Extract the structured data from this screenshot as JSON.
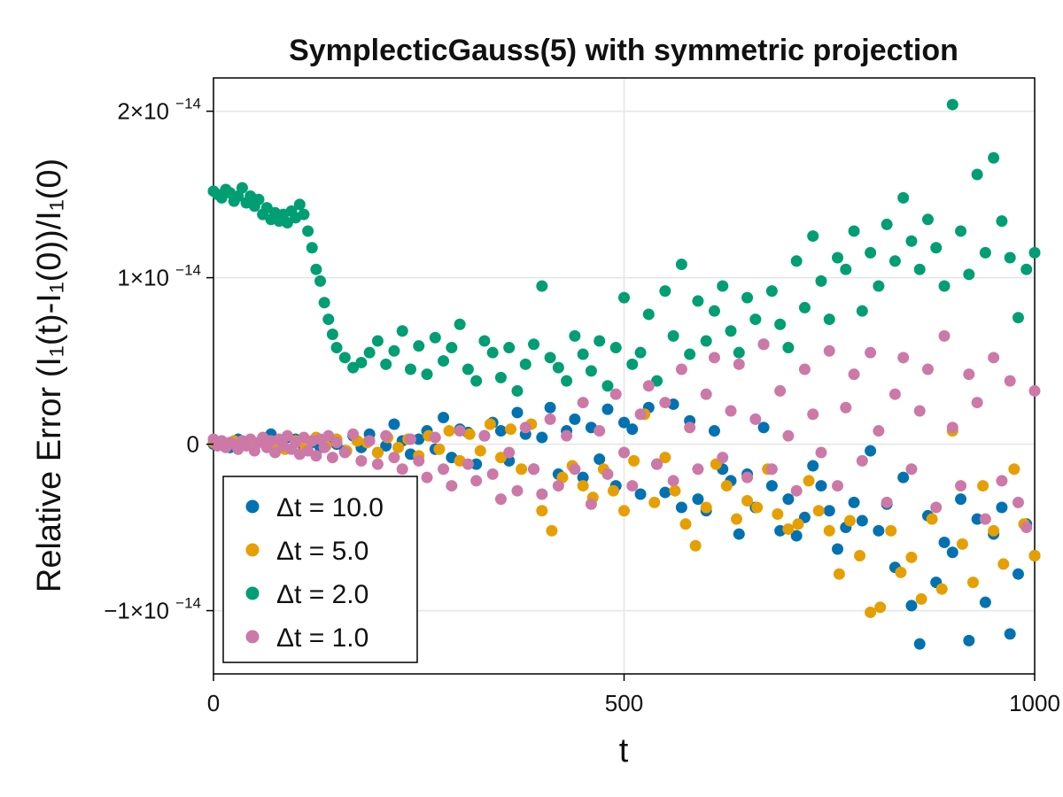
{
  "chart_data": {
    "type": "scatter",
    "title": "SymplecticGauss(5) with symmetric projection",
    "xlabel": "t",
    "ylabel": "Relative Error (I₁(t)-I₁(0))/I₁(0)",
    "xlim": [
      0,
      1000
    ],
    "ylim": [
      -1.38e-14,
      2.2e-14
    ],
    "x_ticks": [
      {
        "value": 0,
        "label": "0"
      },
      {
        "value": 500,
        "label": "500"
      },
      {
        "value": 1000,
        "label": "1000"
      }
    ],
    "y_ticks": [
      {
        "value": -1e-14,
        "label": "−1×10",
        "exp": "−14"
      },
      {
        "value": 0,
        "label": "0",
        "exp": ""
      },
      {
        "value": 1e-14,
        "label": "1×10",
        "exp": "−14"
      },
      {
        "value": 2e-14,
        "label": "2×10",
        "exp": "−14"
      }
    ],
    "grid": true,
    "legend_position": "bottom-left",
    "series": [
      {
        "name": "Δt = 10.0",
        "color": "#0072b2",
        "x": [
          0,
          10,
          20,
          30,
          40,
          50,
          60,
          70,
          80,
          90,
          100,
          110,
          120,
          130,
          140,
          150,
          160,
          170,
          180,
          190,
          200,
          210,
          220,
          230,
          240,
          250,
          260,
          270,
          280,
          290,
          300,
          310,
          320,
          330,
          340,
          350,
          360,
          370,
          380,
          390,
          400,
          410,
          420,
          430,
          440,
          450,
          460,
          470,
          480,
          490,
          500,
          510,
          520,
          530,
          540,
          550,
          560,
          570,
          580,
          590,
          600,
          610,
          620,
          630,
          640,
          650,
          660,
          670,
          680,
          690,
          700,
          710,
          720,
          730,
          740,
          750,
          760,
          770,
          780,
          790,
          800,
          810,
          820,
          830,
          840,
          850,
          860,
          870,
          880,
          890,
          900,
          910,
          920,
          930,
          940,
          950,
          960,
          970,
          980,
          990,
          1000
        ],
        "y": [
          0.0,
          1e-16,
          -2e-16,
          3e-16,
          1e-16,
          -1e-16,
          2e-16,
          6e-16,
          0.0,
          4e-16,
          3e-16,
          -3e-16,
          1e-16,
          -2e-16,
          4e-16,
          0.0,
          -4e-16,
          5e-16,
          -2e-16,
          6e-16,
          -5e-16,
          -1e-16,
          1.2e-15,
          2e-16,
          -6e-16,
          3e-16,
          8e-16,
          -3e-16,
          1.6e-15,
          -8e-16,
          9e-16,
          7e-16,
          -1.2e-15,
          5e-16,
          1.3e-15,
          8e-16,
          -1e-15,
          1.9e-15,
          6e-16,
          -1.5e-15,
          4e-16,
          2.2e-15,
          -1.8e-15,
          8e-16,
          1.5e-15,
          -2e-15,
          1e-15,
          -9e-16,
          2.1e-15,
          -2.5e-15,
          1.3e-15,
          9e-16,
          -3e-15,
          2.2e-15,
          -1.2e-15,
          -2.9e-15,
          2.4e-15,
          -3.8e-15,
          1.4e-15,
          -3.3e-15,
          -4e-15,
          8e-16,
          -1.5e-15,
          -2.2e-15,
          -5.4e-15,
          -1.8e-15,
          -3.8e-15,
          1e-15,
          -2.5e-15,
          -5.2e-15,
          -3.3e-15,
          -5.5e-15,
          -4.4e-15,
          -1.3e-15,
          -2.5e-15,
          -4e-15,
          -6.3e-15,
          -5e-15,
          -3.5e-15,
          -4.6e-15,
          -4e-16,
          -5.2e-15,
          -3.6e-15,
          -7.4e-15,
          -2e-15,
          -9.7e-15,
          -1.2e-14,
          -4.3e-15,
          -8.3e-15,
          -5.9e-15,
          -6.5e-15,
          -3.3e-15,
          -1.18e-14,
          -4.5e-15,
          -9.5e-15,
          -5.4e-15,
          -3.8e-15,
          -1.14e-14,
          -7.8e-15,
          -4.8e-15,
          -6.7e-15
        ]
      },
      {
        "name": "Δt = 5.0",
        "color": "#e69f00",
        "x": [
          0,
          12,
          25,
          37,
          50,
          62,
          75,
          87,
          100,
          112,
          125,
          137,
          150,
          162,
          175,
          187,
          200,
          212,
          225,
          237,
          250,
          262,
          275,
          287,
          300,
          312,
          325,
          337,
          350,
          362,
          375,
          387,
          400,
          412,
          425,
          437,
          450,
          462,
          475,
          487,
          500,
          512,
          525,
          537,
          550,
          562,
          575,
          587,
          600,
          612,
          625,
          637,
          650,
          662,
          675,
          687,
          700,
          712,
          725,
          737,
          750,
          762,
          775,
          787,
          800,
          812,
          825,
          837,
          850,
          862,
          875,
          887,
          900,
          912,
          925,
          937,
          950,
          962,
          975,
          987,
          1000
        ],
        "y": [
          1e-16,
          -1e-16,
          2e-16,
          0.0,
          -2e-16,
          3e-16,
          1e-16,
          -3e-16,
          2e-16,
          -2e-16,
          4e-16,
          -1e-16,
          3e-16,
          -4e-16,
          2e-16,
          1e-16,
          -5e-16,
          4e-16,
          -2e-16,
          3e-16,
          -7e-16,
          5e-16,
          -3e-16,
          8e-16,
          -1e-15,
          6e-16,
          -4e-16,
          1.2e-15,
          -8e-16,
          9e-16,
          -1.5e-15,
          1.2e-15,
          -4e-15,
          -5.2e-15,
          -2e-15,
          -1.3e-15,
          -2.5e-15,
          -3.2e-15,
          -1.5e-15,
          -2.8e-15,
          -4e-15,
          -1e-15,
          1.8e-15,
          -3.5e-15,
          -8e-16,
          -2.8e-15,
          -4.8e-15,
          -6.1e-15,
          -3.8e-15,
          -1.2e-15,
          -2.5e-15,
          -4.5e-15,
          -3.4e-15,
          -3.8e-15,
          -1.5e-15,
          -4.2e-15,
          -5.1e-15,
          -4.8e-15,
          -2.2e-15,
          -4e-15,
          -5.2e-15,
          -7.8e-15,
          -4.6e-15,
          -6.7e-15,
          -1.01e-14,
          -9.8e-15,
          -5.2e-15,
          -7.7e-15,
          -6.8e-15,
          -9.3e-15,
          -4.5e-15,
          -8.7e-15,
          8e-16,
          -6e-15,
          -8.3e-15,
          -2.5e-15,
          -5.2e-15,
          -7.2e-15,
          -1.5e-15,
          -4.8e-15,
          -6.7e-15
        ]
      },
      {
        "name": "Δt = 2.0",
        "color": "#009e73",
        "x": [
          0,
          5,
          10,
          15,
          20,
          25,
          30,
          35,
          40,
          45,
          50,
          55,
          60,
          65,
          70,
          75,
          80,
          85,
          90,
          95,
          100,
          105,
          110,
          115,
          120,
          125,
          130,
          135,
          140,
          145,
          150,
          160,
          170,
          180,
          190,
          200,
          210,
          220,
          230,
          240,
          250,
          260,
          270,
          280,
          290,
          300,
          310,
          320,
          330,
          340,
          350,
          360,
          370,
          380,
          390,
          400,
          410,
          420,
          430,
          440,
          450,
          460,
          470,
          480,
          490,
          500,
          510,
          520,
          530,
          540,
          550,
          560,
          570,
          580,
          590,
          600,
          610,
          620,
          630,
          640,
          650,
          660,
          670,
          680,
          690,
          700,
          710,
          720,
          730,
          740,
          750,
          760,
          770,
          780,
          790,
          800,
          810,
          820,
          830,
          840,
          850,
          860,
          870,
          880,
          890,
          900,
          910,
          920,
          930,
          940,
          950,
          960,
          970,
          980,
          990,
          1000
        ],
        "y": [
          1.52e-14,
          1.5e-14,
          1.48e-14,
          1.53e-14,
          1.51e-14,
          1.46e-14,
          1.49e-14,
          1.54e-14,
          1.45e-14,
          1.49e-14,
          1.43e-14,
          1.47e-14,
          1.38e-14,
          1.42e-14,
          1.35e-14,
          1.39e-14,
          1.34e-14,
          1.38e-14,
          1.33e-14,
          1.4e-14,
          1.36e-14,
          1.44e-14,
          1.38e-14,
          1.28e-14,
          1.18e-14,
          1.05e-14,
          9.8e-15,
          8.5e-15,
          7.5e-15,
          6.6e-15,
          5.8e-15,
          5.2e-15,
          4.6e-15,
          4.9e-15,
          5.5e-15,
          6.2e-15,
          4.8e-15,
          5.6e-15,
          6.8e-15,
          4.5e-15,
          5.9e-15,
          4.2e-15,
          6.4e-15,
          5e-15,
          5.8e-15,
          7.2e-15,
          4.5e-15,
          3.8e-15,
          6.2e-15,
          5.5e-15,
          4e-15,
          5.8e-15,
          3.2e-15,
          4.8e-15,
          6e-15,
          9.5e-15,
          5.2e-15,
          4.6e-15,
          3.8e-15,
          6.5e-15,
          5.4e-15,
          4.4e-15,
          6.2e-15,
          3.5e-15,
          5.8e-15,
          8.8e-15,
          4.8e-15,
          5.5e-15,
          7.8e-15,
          3.8e-15,
          9.2e-15,
          6.5e-15,
          1.08e-14,
          5.4e-15,
          8.6e-15,
          6.2e-15,
          8e-15,
          9.5e-15,
          6.8e-15,
          5.5e-15,
          8.8e-15,
          7.5e-15,
          6e-15,
          9.2e-15,
          7.2e-15,
          5.8e-15,
          1.1e-14,
          8.2e-15,
          1.25e-14,
          9.8e-15,
          7.5e-15,
          1.12e-14,
          1.05e-14,
          1.28e-14,
          8e-15,
          1.15e-14,
          9.5e-15,
          1.32e-14,
          1.1e-14,
          1.48e-14,
          1.22e-14,
          1.05e-14,
          1.35e-14,
          1.18e-14,
          9.5e-15,
          2.04e-14,
          1.28e-14,
          1.02e-14,
          1.62e-14,
          1.15e-14,
          1.72e-14,
          1.34e-14,
          1.12e-14,
          7.6e-15,
          1.05e-14,
          1.15e-14
        ]
      },
      {
        "name": "Δt = 1.0",
        "color": "#cc79a7",
        "x": [
          0,
          5,
          10,
          15,
          20,
          25,
          30,
          35,
          40,
          45,
          50,
          55,
          60,
          65,
          70,
          75,
          80,
          85,
          90,
          95,
          100,
          105,
          110,
          115,
          120,
          125,
          130,
          135,
          140,
          145,
          150,
          160,
          170,
          180,
          190,
          200,
          210,
          220,
          230,
          240,
          250,
          260,
          270,
          280,
          290,
          300,
          310,
          320,
          330,
          340,
          350,
          360,
          370,
          380,
          390,
          400,
          410,
          420,
          430,
          440,
          450,
          460,
          470,
          480,
          490,
          500,
          510,
          520,
          530,
          540,
          550,
          560,
          570,
          580,
          590,
          600,
          610,
          620,
          630,
          640,
          650,
          660,
          670,
          680,
          690,
          700,
          710,
          720,
          730,
          740,
          750,
          760,
          770,
          780,
          790,
          800,
          810,
          820,
          830,
          840,
          850,
          860,
          870,
          880,
          890,
          900,
          910,
          920,
          930,
          940,
          950,
          960,
          970,
          980,
          990,
          1000
        ],
        "y": [
          3e-16,
          -1e-16,
          2e-16,
          -2e-16,
          1e-16,
          0.0,
          -3e-16,
          2e-16,
          -1e-16,
          3e-16,
          -4e-16,
          1e-16,
          4e-16,
          -2e-16,
          2e-16,
          -5e-16,
          3e-16,
          -1e-16,
          5e-16,
          -3e-16,
          1e-16,
          -6e-16,
          4e-16,
          -4e-16,
          2e-16,
          -7e-16,
          3e-16,
          -2e-16,
          5e-16,
          -8e-16,
          1e-16,
          -5e-16,
          6e-16,
          -1e-15,
          2e-16,
          -1.2e-15,
          5e-16,
          -8e-16,
          -1.5e-15,
          3e-16,
          -1e-15,
          -2e-15,
          4e-16,
          -1.5e-15,
          -2.5e-15,
          8e-16,
          -1.2e-15,
          -2.2e-15,
          5e-16,
          -1.8e-15,
          -3.3e-15,
          -5e-16,
          -2.8e-15,
          1e-15,
          -1.5e-15,
          -3e-15,
          1.5e-15,
          -2.5e-15,
          5e-16,
          -1.5e-15,
          2.5e-15,
          -3.6e-15,
          8e-16,
          -1.8e-15,
          3e-15,
          -5e-16,
          -2.5e-15,
          1.8e-15,
          3.5e-15,
          -1.2e-15,
          2.5e-15,
          -2.2e-15,
          4.5e-15,
          1e-15,
          -1.5e-15,
          3e-15,
          5.2e-15,
          -8e-16,
          2e-15,
          4.8e-15,
          -2e-15,
          1.5e-15,
          6e-15,
          -1.5e-15,
          3.2e-15,
          5e-16,
          -2.8e-15,
          4.5e-15,
          1.8e-15,
          -5e-16,
          5.6e-15,
          -2.5e-15,
          2.2e-15,
          4.2e-15,
          -1e-15,
          5.5e-15,
          8e-16,
          -3.5e-15,
          3e-15,
          5.2e-15,
          -1.5e-15,
          2e-15,
          4.5e-15,
          -3.8e-15,
          6.5e-15,
          1e-15,
          -2.5e-15,
          4.2e-15,
          2.5e-15,
          -4.5e-15,
          5.2e-15,
          -2.2e-15,
          3.8e-15,
          -3.5e-15,
          -5e-15,
          3.2e-15
        ]
      }
    ]
  }
}
